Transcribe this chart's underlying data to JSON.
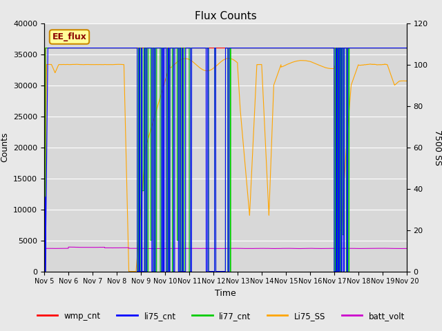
{
  "title": "Flux Counts",
  "xlabel": "Time",
  "ylabel_left": "Counts",
  "ylabel_right": "7500 SS",
  "ylim_left": [
    0,
    40000
  ],
  "ylim_right": [
    0,
    120
  ],
  "xtick_labels": [
    "Nov 5",
    "Nov 6",
    "Nov 7",
    "Nov 8",
    "Nov 9",
    "Nov 10",
    "Nov 11",
    "Nov 12",
    "Nov 13",
    "Nov 14",
    "Nov 15",
    "Nov 16",
    "Nov 17",
    "Nov 18",
    "Nov 19",
    "Nov 20"
  ],
  "bg_color": "#e8e8e8",
  "plot_bg_color": "#d8d8d8",
  "legend_labels": [
    "wmp_cnt",
    "li75_cnt",
    "li77_cnt",
    "Li75_SS",
    "batt_volt"
  ],
  "legend_colors": [
    "#ff0000",
    "#0000ff",
    "#00cc00",
    "#ffa500",
    "#cc00cc"
  ],
  "annotation_text": "EE_flux",
  "annotation_bg": "#ffff99",
  "annotation_border": "#cc8800",
  "right_yticks": [
    0,
    20,
    40,
    60,
    80,
    100,
    120
  ]
}
